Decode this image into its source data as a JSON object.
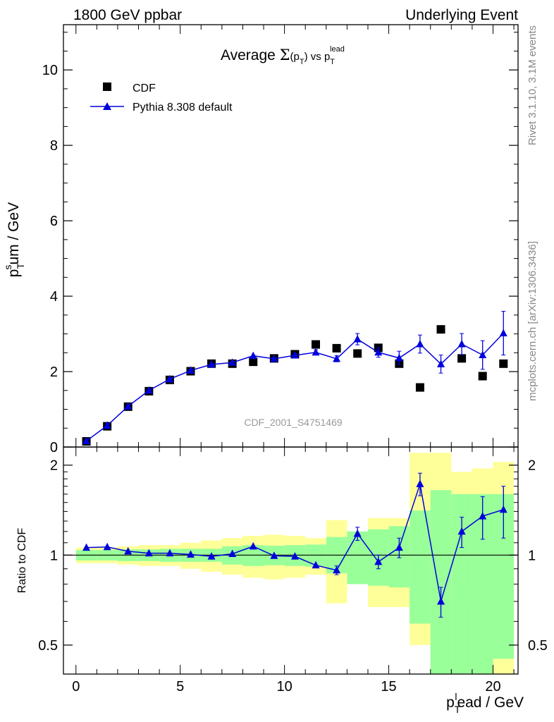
{
  "header": {
    "left": "1800 GeV ppbar",
    "right": "Underlying Event"
  },
  "side_labels": {
    "rivet": "Rivet 3.1.10,  3.1M events",
    "mcplots": "mcplots.cern.ch [arXiv:1306.3436]"
  },
  "chart_data": [
    {
      "type": "scatter",
      "title": "Average Σ(p_T) vs p_T^lead",
      "ylabel": "p_T^sum / GeV",
      "xlim": [
        -0.6,
        21.2
      ],
      "ylim": [
        0,
        11.2
      ],
      "yticks": [
        0,
        2,
        4,
        6,
        8,
        10
      ],
      "watermark": "CDF_2001_S4751469",
      "legend_position": "top-left",
      "x": [
        0.5,
        1.5,
        2.5,
        3.5,
        4.5,
        5.5,
        6.5,
        7.5,
        8.5,
        9.5,
        10.5,
        11.5,
        12.5,
        13.5,
        14.5,
        15.5,
        16.5,
        17.5,
        18.5,
        19.5,
        20.5
      ],
      "series": [
        {
          "name": "CDF",
          "color": "#000000",
          "marker": "square",
          "values": [
            0.15,
            0.55,
            1.07,
            1.48,
            1.78,
            2.01,
            2.21,
            2.21,
            2.26,
            2.35,
            2.46,
            2.72,
            2.62,
            2.48,
            2.63,
            2.21,
            1.58,
            3.12,
            2.35,
            1.88,
            2.21
          ]
        },
        {
          "name": "Pythia 8.308 default",
          "color": "#0000dd",
          "marker": "triangle",
          "values": [
            0.16,
            0.57,
            1.08,
            1.5,
            1.8,
            2.03,
            2.19,
            2.24,
            2.42,
            2.34,
            2.43,
            2.51,
            2.34,
            2.86,
            2.51,
            2.36,
            2.73,
            2.2,
            2.73,
            2.44,
            3.02
          ],
          "errors": [
            0.01,
            0.01,
            0.02,
            0.02,
            0.02,
            0.03,
            0.03,
            0.04,
            0.05,
            0.05,
            0.06,
            0.07,
            0.08,
            0.15,
            0.13,
            0.18,
            0.24,
            0.24,
            0.28,
            0.38,
            0.58
          ]
        }
      ]
    },
    {
      "type": "line",
      "ylabel": "Ratio to CDF",
      "xlabel": "p_T^lead / GeV",
      "ylog": true,
      "ylim": [
        0.4,
        2.3
      ],
      "yticks": [
        0.5,
        1,
        2
      ],
      "xticks": [
        0,
        5,
        10,
        15,
        20
      ],
      "x": [
        0.5,
        1.5,
        2.5,
        3.5,
        4.5,
        5.5,
        6.5,
        7.5,
        8.5,
        9.5,
        10.5,
        11.5,
        12.5,
        13.5,
        14.5,
        15.5,
        16.5,
        17.5,
        18.5,
        19.5,
        20.5
      ],
      "series": [
        {
          "name": "Pythia 8.308 default",
          "color": "#0000dd",
          "values": [
            1.06,
            1.065,
            1.03,
            1.015,
            1.015,
            1.005,
            0.99,
            1.01,
            1.07,
            0.995,
            0.99,
            0.925,
            0.89,
            1.18,
            0.95,
            1.06,
            1.73,
            0.7,
            1.2,
            1.35,
            1.42
          ],
          "errors": [
            0.01,
            0.01,
            0.01,
            0.01,
            0.01,
            0.01,
            0.01,
            0.01,
            0.02,
            0.02,
            0.02,
            0.02,
            0.03,
            0.06,
            0.05,
            0.08,
            0.15,
            0.08,
            0.14,
            0.22,
            0.28
          ]
        }
      ],
      "bands": {
        "stat_color": "#99ff99",
        "total_color": "#ffff99",
        "stat_lo": [
          0.96,
          0.96,
          0.955,
          0.955,
          0.95,
          0.95,
          0.95,
          0.93,
          0.92,
          0.925,
          0.92,
          0.915,
          0.87,
          0.8,
          0.79,
          0.78,
          0.59,
          0.38,
          0.38,
          0.38,
          0.45
        ],
        "stat_hi": [
          1.04,
          1.04,
          1.045,
          1.045,
          1.05,
          1.05,
          1.05,
          1.07,
          1.08,
          1.075,
          1.08,
          1.085,
          1.15,
          1.2,
          1.22,
          1.25,
          1.41,
          1.65,
          1.6,
          1.6,
          1.6
        ],
        "total_lo": [
          0.94,
          0.94,
          0.93,
          0.92,
          0.92,
          0.9,
          0.88,
          0.86,
          0.84,
          0.83,
          0.84,
          0.86,
          0.69,
          0.81,
          0.67,
          0.67,
          0.5,
          0.32,
          0.68,
          0.8,
          0.36
        ],
        "total_hi": [
          1.06,
          1.06,
          1.07,
          1.08,
          1.08,
          1.1,
          1.12,
          1.14,
          1.16,
          1.17,
          1.16,
          1.14,
          1.31,
          1.19,
          1.33,
          1.33,
          2.2,
          2.2,
          1.9,
          1.95,
          2.05
        ]
      }
    }
  ]
}
